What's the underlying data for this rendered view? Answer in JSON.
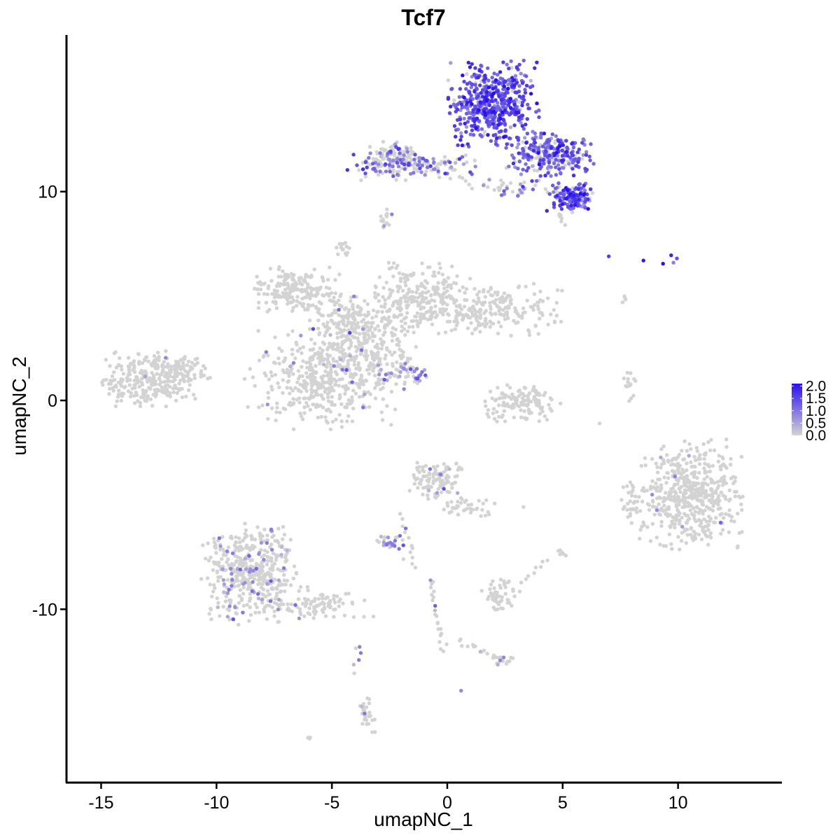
{
  "chart_data": {
    "type": "scatter",
    "title": "Tcf7",
    "xlabel": "umapNC_1",
    "ylabel": "umapNC_2",
    "xlim": [
      -16.5,
      14.5
    ],
    "ylim": [
      -18.3,
      17.5
    ],
    "x_ticks": [
      -15,
      -10,
      -5,
      0,
      5,
      10
    ],
    "x_tick_labels": [
      "-15",
      "-10",
      "-5",
      "0",
      "5",
      "10"
    ],
    "y_ticks": [
      -10,
      0,
      10
    ],
    "y_tick_labels": [
      "-10",
      "0",
      "10"
    ],
    "grid": false,
    "legend_position": "right",
    "colors": {
      "low": "#d3d3d3",
      "high": "#2a0ff0"
    },
    "color_scale": {
      "min": 0,
      "max": 2.1,
      "ticks": [
        0.0,
        0.5,
        1.0,
        1.5,
        2.0
      ],
      "tick_labels": [
        "0.0",
        "0.5",
        "1.0",
        "1.5",
        "2.0"
      ]
    },
    "clusters": [
      {
        "center": [
          2.0,
          14.2
        ],
        "spread": [
          0.9,
          0.95
        ],
        "count": 520,
        "expr_mean": 1.35,
        "expr_sd": 0.4,
        "expr_prob": 0.92
      },
      {
        "center": [
          4.5,
          11.8
        ],
        "spread": [
          0.9,
          0.5
        ],
        "count": 260,
        "expr_mean": 1.25,
        "expr_sd": 0.4,
        "expr_prob": 0.8
      },
      {
        "center": [
          5.4,
          9.7
        ],
        "spread": [
          0.5,
          0.35
        ],
        "count": 140,
        "expr_mean": 1.3,
        "expr_sd": 0.4,
        "expr_prob": 0.85
      },
      {
        "center": [
          -1.5,
          11.2
        ],
        "spread": [
          1.4,
          0.3
        ],
        "count": 130,
        "expr_mean": 1.0,
        "expr_sd": 0.4,
        "expr_prob": 0.5
      },
      {
        "center": [
          -2.3,
          11.7
        ],
        "spread": [
          0.5,
          0.4
        ],
        "count": 90,
        "expr_mean": 1.0,
        "expr_sd": 0.4,
        "expr_prob": 0.25
      },
      {
        "center": [
          3.0,
          10.2
        ],
        "spread": [
          0.7,
          0.2
        ],
        "count": 35,
        "expr_mean": 0.9,
        "expr_sd": 0.4,
        "expr_prob": 0.4
      },
      {
        "center": [
          -2.7,
          8.6
        ],
        "spread": [
          0.15,
          0.3
        ],
        "count": 14,
        "expr_mean": 0.6,
        "expr_sd": 0.3,
        "expr_prob": 0.2
      },
      {
        "center": [
          -4.5,
          7.3
        ],
        "spread": [
          0.15,
          0.2
        ],
        "count": 15,
        "expr_mean": 0,
        "expr_sd": 0,
        "expr_prob": 0
      },
      {
        "center": [
          -6.5,
          5.3
        ],
        "spread": [
          0.9,
          0.55
        ],
        "count": 190,
        "expr_mean": 0,
        "expr_sd": 0,
        "expr_prob": 0
      },
      {
        "center": [
          -4.3,
          4.0
        ],
        "spread": [
          0.8,
          0.5
        ],
        "count": 120,
        "expr_mean": 0.7,
        "expr_sd": 0.3,
        "expr_prob": 0.02
      },
      {
        "center": [
          -5.5,
          1.0
        ],
        "spread": [
          1.5,
          1.1
        ],
        "count": 420,
        "expr_mean": 0.7,
        "expr_sd": 0.3,
        "expr_prob": 0.02
      },
      {
        "center": [
          -3.5,
          2.5
        ],
        "spread": [
          1.0,
          1.0
        ],
        "count": 220,
        "expr_mean": 0.7,
        "expr_sd": 0.3,
        "expr_prob": 0.02
      },
      {
        "center": [
          -1.2,
          5.0
        ],
        "spread": [
          1.0,
          0.8
        ],
        "count": 220,
        "expr_mean": 0,
        "expr_sd": 0,
        "expr_prob": 0
      },
      {
        "center": [
          1.8,
          4.3
        ],
        "spread": [
          1.5,
          0.6
        ],
        "count": 230,
        "expr_mean": 0,
        "expr_sd": 0,
        "expr_prob": 0
      },
      {
        "center": [
          -1.8,
          1.3
        ],
        "spread": [
          0.6,
          0.25
        ],
        "count": 45,
        "expr_mean": 0.8,
        "expr_sd": 0.3,
        "expr_prob": 0.45
      },
      {
        "center": [
          -13.0,
          1.0
        ],
        "spread": [
          1.0,
          0.65
        ],
        "count": 260,
        "expr_mean": 0.7,
        "expr_sd": 0.3,
        "expr_prob": 0.02
      },
      {
        "center": [
          -11.5,
          1.5
        ],
        "spread": [
          0.6,
          0.35
        ],
        "count": 70,
        "expr_mean": 0,
        "expr_sd": 0,
        "expr_prob": 0
      },
      {
        "center": [
          3.3,
          -0.1
        ],
        "spread": [
          0.8,
          0.45
        ],
        "count": 130,
        "expr_mean": 0,
        "expr_sd": 0,
        "expr_prob": 0
      },
      {
        "center": [
          10.5,
          -4.5
        ],
        "spread": [
          1.05,
          1.2
        ],
        "count": 520,
        "expr_mean": 0.7,
        "expr_sd": 0.3,
        "expr_prob": 0.01
      },
      {
        "center": [
          8.1,
          -4.8
        ],
        "spread": [
          0.25,
          0.5
        ],
        "count": 35,
        "expr_mean": 0,
        "expr_sd": 0,
        "expr_prob": 0
      },
      {
        "center": [
          -8.5,
          -8.3
        ],
        "spread": [
          1.0,
          1.15
        ],
        "count": 450,
        "expr_mean": 0.75,
        "expr_sd": 0.3,
        "expr_prob": 0.12
      },
      {
        "center": [
          -5.5,
          -9.7
        ],
        "spread": [
          1.1,
          0.35
        ],
        "count": 90,
        "expr_mean": 0,
        "expr_sd": 0,
        "expr_prob": 0
      },
      {
        "center": [
          -0.5,
          -3.8
        ],
        "spread": [
          0.55,
          0.45
        ],
        "count": 110,
        "expr_mean": 0.7,
        "expr_sd": 0.3,
        "expr_prob": 0.05
      },
      {
        "center": [
          0.9,
          -5.0
        ],
        "spread": [
          0.6,
          0.3
        ],
        "count": 40,
        "expr_mean": 0,
        "expr_sd": 0,
        "expr_prob": 0
      },
      {
        "center": [
          -2.4,
          -6.8
        ],
        "spread": [
          0.3,
          0.15
        ],
        "count": 28,
        "expr_mean": 0.8,
        "expr_sd": 0.3,
        "expr_prob": 0.55
      },
      {
        "center": [
          2.3,
          -9.3
        ],
        "spread": [
          0.4,
          0.45
        ],
        "count": 50,
        "expr_mean": 0,
        "expr_sd": 0,
        "expr_prob": 0
      },
      {
        "center": [
          -3.5,
          -15.0
        ],
        "spread": [
          0.2,
          0.5
        ],
        "count": 30,
        "expr_mean": 0.7,
        "expr_sd": 0.3,
        "expr_prob": 0.05
      },
      {
        "center": [
          2.4,
          -12.5
        ],
        "spread": [
          0.3,
          0.15
        ],
        "count": 14,
        "expr_mean": 0.7,
        "expr_sd": 0.3,
        "expr_prob": 0.2
      },
      {
        "center": [
          7.9,
          0.5
        ],
        "spread": [
          0.15,
          0.5
        ],
        "count": 15,
        "expr_mean": 0.7,
        "expr_sd": 0.3,
        "expr_prob": 0.1
      },
      {
        "center": [
          5.0,
          -7.3
        ],
        "spread": [
          0.1,
          0.1
        ],
        "count": 6,
        "expr_mean": 0,
        "expr_sd": 0,
        "expr_prob": 0
      },
      {
        "center": [
          -6.0,
          -16.2
        ],
        "spread": [
          0.05,
          0.05
        ],
        "count": 3,
        "expr_mean": 0,
        "expr_sd": 0,
        "expr_prob": 0
      },
      {
        "center": [
          7.7,
          4.8
        ],
        "spread": [
          0.05,
          0.1
        ],
        "count": 3,
        "expr_mean": 0,
        "expr_sd": 0,
        "expr_prob": 0
      }
    ],
    "trails": [
      {
        "from": [
          -1.3,
          -8.0
        ],
        "to": [
          -2.0,
          -5.4
        ],
        "count": 12,
        "expr_mean": 0.7,
        "expr_prob": 0.2
      },
      {
        "from": [
          -0.7,
          -8.5
        ],
        "to": [
          -0.2,
          -12.0
        ],
        "count": 22,
        "expr_mean": 0.8,
        "expr_prob": 0.25
      },
      {
        "from": [
          0.5,
          -11.5
        ],
        "to": [
          2.3,
          -12.4
        ],
        "count": 15,
        "expr_mean": 0.7,
        "expr_prob": 0.1
      },
      {
        "from": [
          -3.9,
          -11.8
        ],
        "to": [
          -3.9,
          -13.0
        ],
        "count": 5,
        "expr_mean": 0.7,
        "expr_prob": 0.3
      },
      {
        "from": [
          4.3,
          -7.6
        ],
        "to": [
          3.2,
          -8.7
        ],
        "count": 8,
        "expr_mean": 0,
        "expr_prob": 0
      },
      {
        "from": [
          -2.7,
          4.0
        ],
        "to": [
          -1.3,
          0.9
        ],
        "count": 25,
        "expr_mean": 0.7,
        "expr_prob": 0.05
      },
      {
        "from": [
          0.0,
          11.3
        ],
        "to": [
          1.0,
          10.2
        ],
        "count": 10,
        "expr_mean": 0,
        "expr_prob": 0
      },
      {
        "from": [
          4.8,
          9.0
        ],
        "to": [
          5.0,
          8.5
        ],
        "count": 8,
        "expr_mean": 0,
        "expr_prob": 0
      }
    ],
    "extra_points": [
      {
        "x": 7.0,
        "y": 6.9,
        "expr": 1.6
      },
      {
        "x": 8.5,
        "y": 6.7,
        "expr": 2.0
      },
      {
        "x": 9.35,
        "y": 6.55,
        "expr": 2.1
      },
      {
        "x": 9.7,
        "y": 6.95,
        "expr": 1.9
      },
      {
        "x": 9.8,
        "y": 6.6,
        "expr": 0.9
      },
      {
        "x": 9.95,
        "y": 6.8,
        "expr": 1.4
      },
      {
        "x": 7.6,
        "y": 4.7,
        "expr": 0
      },
      {
        "x": 6.6,
        "y": -1.1,
        "expr": 0
      },
      {
        "x": 0.6,
        "y": -13.9,
        "expr": 0.8
      },
      {
        "x": -3.8,
        "y": -11.8,
        "expr": 0.9
      },
      {
        "x": -1.9,
        "y": -7.6,
        "expr": 0
      },
      {
        "x": 3.3,
        "y": -5.1,
        "expr": 0
      }
    ]
  }
}
